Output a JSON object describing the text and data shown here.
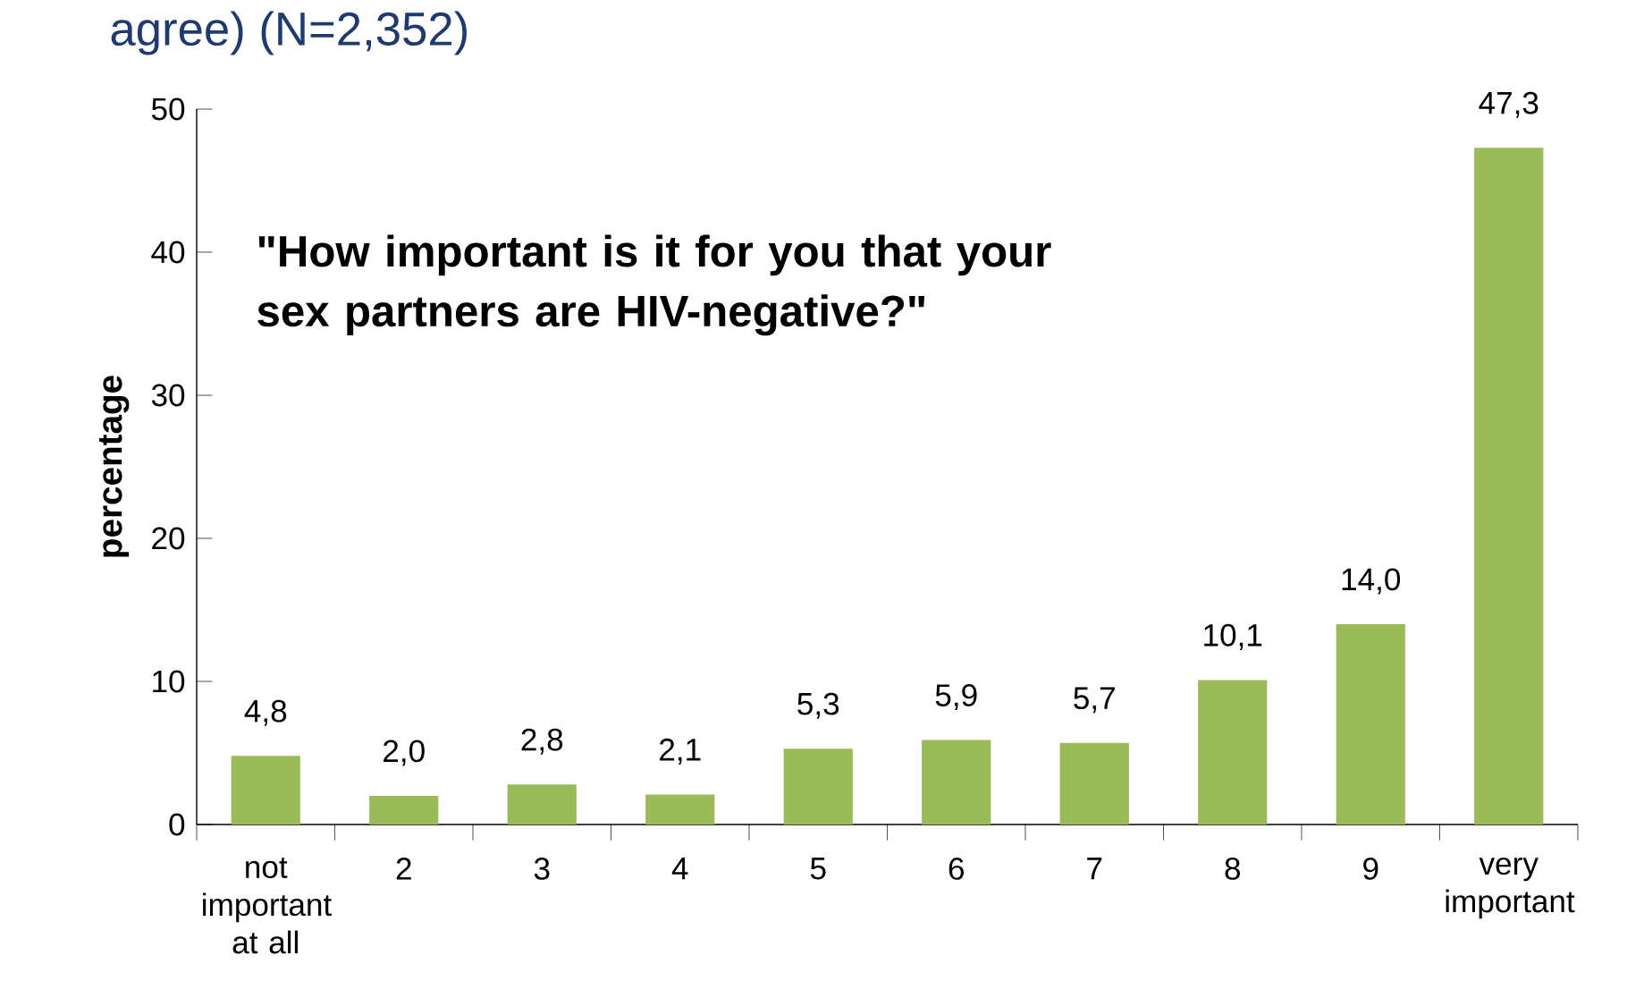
{
  "chart_data": {
    "type": "bar",
    "title": "agree) (N=2,352)",
    "ylabel": "percentage",
    "annotations": [
      "\"How important is it for you that your sex partners are HIV-negative?\""
    ],
    "categories": [
      "not important at all",
      "2",
      "3",
      "4",
      "5",
      "6",
      "7",
      "8",
      "9",
      "very important"
    ],
    "values": [
      4.8,
      2.0,
      2.8,
      2.1,
      5.3,
      5.9,
      5.7,
      10.1,
      14.0,
      47.3
    ],
    "value_labels": [
      "4,8",
      "2,0",
      "2,8",
      "2,1",
      "5,3",
      "5,9",
      "5,7",
      "10,1",
      "14,0",
      "47,3"
    ],
    "color": "#9bbb59",
    "ylim": [
      0,
      50
    ],
    "yticks": [
      0,
      10,
      20,
      30,
      40,
      50
    ],
    "grid": false
  }
}
